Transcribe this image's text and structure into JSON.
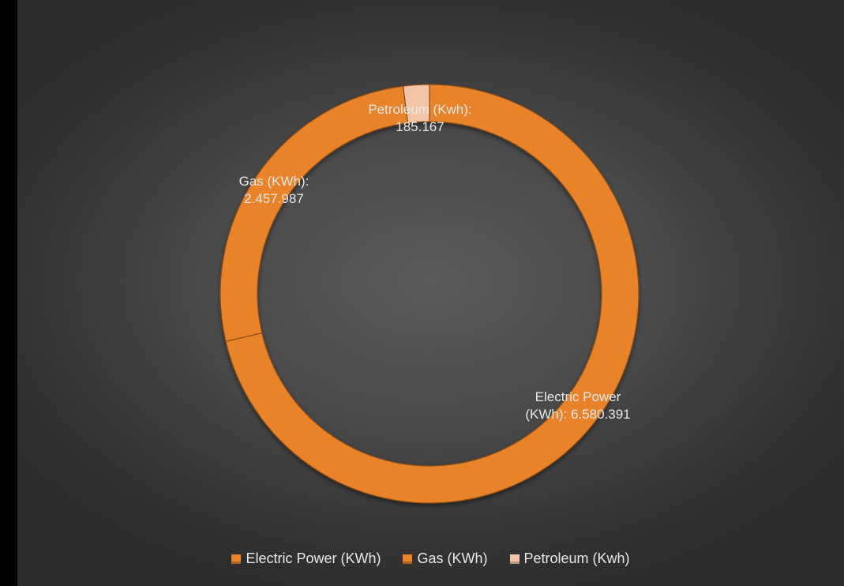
{
  "chart_data": {
    "type": "pie",
    "variant": "donut",
    "title": "",
    "slices": [
      {
        "name": "Electric Power (KWh)",
        "value": 6580391,
        "label": "Electric Power\n(KWh): 6.580.391",
        "color": "#e8832a"
      },
      {
        "name": "Gas (KWh)",
        "value": 2457987,
        "label": "Gas (KWh):\n2.457.987",
        "color": "#e8832a"
      },
      {
        "name": "Petroleum  (Kwh)",
        "value": 185167,
        "label": "Petroleum  (Kwh):\n185.167",
        "color": "#f2c4a8"
      }
    ],
    "legend_position": "bottom",
    "background": "#4a4a4a"
  },
  "legend": {
    "items": [
      {
        "label": "Electric Power (KWh)",
        "color": "#e8832a"
      },
      {
        "label": "Gas (KWh)",
        "color": "#e8832a"
      },
      {
        "label": "Petroleum  (Kwh)",
        "color": "#f2c4a8"
      }
    ]
  }
}
